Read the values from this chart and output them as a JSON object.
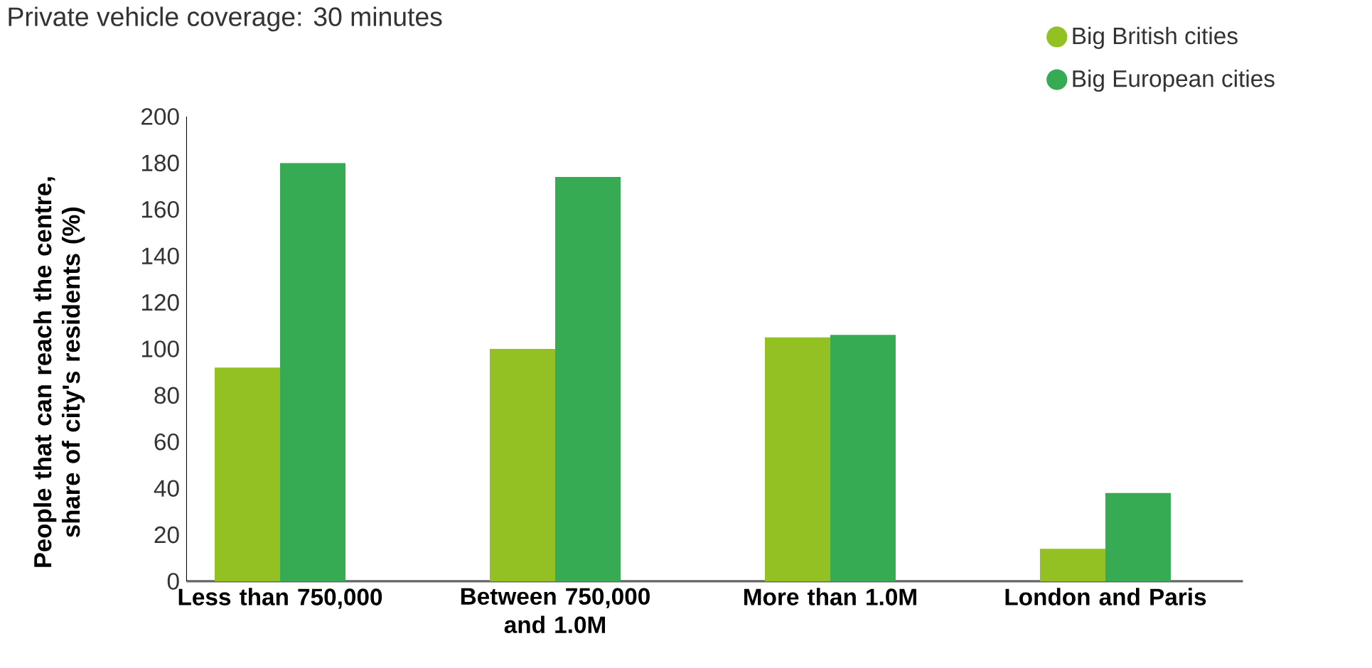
{
  "chart_data": {
    "type": "bar",
    "title": "Private vehicle coverage: 30 minutes",
    "ylabel": "People that can reach the centre, share of city's residents (%)",
    "categories": [
      "Less than 750,000",
      "Between 750,000 and 1.0M",
      "More than 1.0M",
      "London and Paris"
    ],
    "series": [
      {
        "name": "Big British cities",
        "color": "#93c022",
        "values": [
          92,
          100,
          105,
          14
        ]
      },
      {
        "name": "Big European cities",
        "color": "#36ab53",
        "values": [
          180,
          174,
          106,
          38
        ]
      }
    ],
    "ylim": [
      0,
      200
    ],
    "yticks": [
      0,
      20,
      40,
      60,
      80,
      100,
      120,
      140,
      160,
      180,
      200
    ],
    "grid": false,
    "legend": "top right"
  }
}
